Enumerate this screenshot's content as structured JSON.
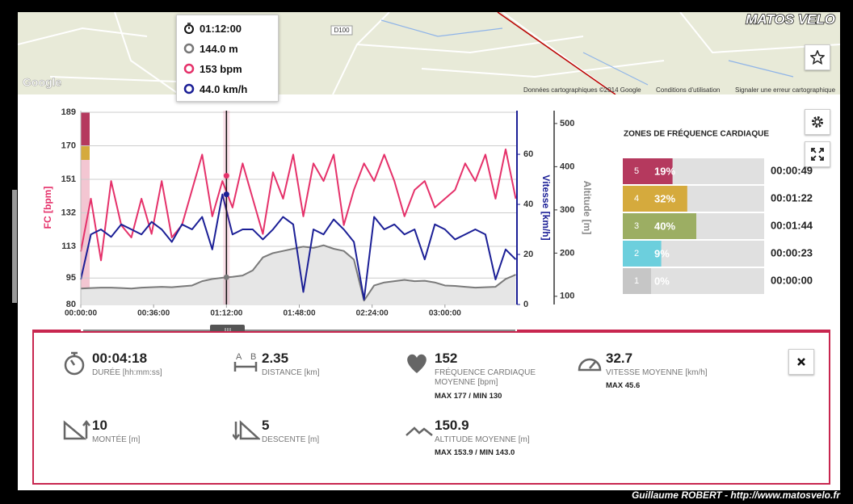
{
  "map": {
    "road": "D100",
    "google": "Google",
    "credits": "Données cartographiques ©2014 Google",
    "terms": "Conditions d'utilisation",
    "report": "Signaler une erreur cartographique"
  },
  "logo": "MATOS VELO",
  "chart_data": {
    "type": "line",
    "x": [
      0,
      5,
      10,
      15,
      20,
      25,
      30,
      35,
      40,
      45,
      50,
      55,
      60,
      65,
      70,
      75,
      80,
      85,
      90,
      95,
      100,
      105,
      110,
      115,
      120,
      125,
      130,
      135,
      140,
      145,
      150,
      155,
      160,
      165,
      170,
      175,
      180,
      185,
      190,
      195,
      200,
      205,
      210,
      215
    ],
    "xlim": [
      0,
      215.6
    ],
    "xticks": [
      {
        "value": 0,
        "label": "00:00:00"
      },
      {
        "value": 36,
        "label": "00:36:00"
      },
      {
        "value": 72,
        "label": "01:12:00"
      },
      {
        "value": 108,
        "label": "01:48:00"
      },
      {
        "value": 144,
        "label": "02:24:00"
      },
      {
        "value": 180,
        "label": "03:00:00"
      }
    ],
    "ylim": [
      80,
      189
    ],
    "yticks": [
      80,
      95,
      113,
      132,
      151,
      170,
      189
    ],
    "ylabel": "FC [bpm]",
    "y2lim": [
      0,
      76.8
    ],
    "y2ticks": [
      0,
      20,
      40,
      60
    ],
    "y2label": "Vitesse [km/h]",
    "y3lim": [
      81,
      526
    ],
    "y3ticks": [
      100,
      200,
      300,
      400,
      500
    ],
    "y3label": "Altitude [m]",
    "grid": true,
    "series": [
      {
        "color": "#e5316a",
        "values": [
          110,
          140,
          105,
          150,
          125,
          118,
          140,
          120,
          150,
          118,
          125,
          145,
          165,
          130,
          150,
          135,
          160,
          140,
          120,
          155,
          140,
          165,
          130,
          160,
          150,
          165,
          125,
          145,
          160,
          150,
          165,
          150,
          130,
          145,
          150,
          135,
          140,
          145,
          160,
          150,
          165,
          140,
          168,
          140
        ]
      },
      {
        "color": "#1b1f96",
        "axis": "y2",
        "values": [
          10,
          28,
          30,
          27,
          32,
          30,
          28,
          33,
          30,
          25,
          32,
          30,
          35,
          22,
          44,
          28,
          30,
          30,
          26,
          30,
          35,
          32,
          5,
          30,
          28,
          34,
          30,
          25,
          2,
          35,
          30,
          32,
          28,
          30,
          18,
          32,
          30,
          26,
          28,
          30,
          28,
          10,
          22,
          18
        ]
      },
      {
        "color": "#7a7a7a",
        "axis": "y3",
        "values": [
          118,
          119,
          120,
          120,
          119,
          118,
          120,
          121,
          122,
          121,
          123,
          125,
          135,
          140,
          143,
          145,
          148,
          160,
          190,
          200,
          205,
          210,
          215,
          212,
          218,
          210,
          205,
          185,
          90,
          125,
          132,
          135,
          138,
          135,
          136,
          132,
          125,
          124,
          122,
          120,
          121,
          122,
          140,
          150
        ]
      }
    ],
    "cursor": {
      "x": 72,
      "label": "01:12:00",
      "altitude": 144,
      "altitude_label": "144.0 m",
      "hr": 153,
      "hr_label": "153 bpm",
      "speed": 44,
      "speed_label": "44.0 km/h"
    }
  },
  "zones": {
    "title": "ZONES DE FRÉQUENCE CARDIAQUE",
    "rows": [
      {
        "zone": "5",
        "value": 19,
        "value_label": "19%",
        "time": "00:00:49",
        "color": "#b5395e"
      },
      {
        "zone": "4",
        "value": 32,
        "value_label": "32%",
        "time": "00:01:22",
        "color": "#d5aa3d"
      },
      {
        "zone": "3",
        "value": 40,
        "value_label": "40%",
        "time": "00:01:44",
        "color": "#9cae63"
      },
      {
        "zone": "2",
        "value": 9,
        "value_label": "9%",
        "time": "00:00:23",
        "color": "#6ccfdd"
      },
      {
        "zone": "1",
        "value": 0,
        "value_label": "0%",
        "time": "00:00:00",
        "color": "#c6c6c6"
      }
    ]
  },
  "stats": [
    {
      "value": "00:04:18",
      "label": "DURÉE [hh:mm:ss]"
    },
    {
      "value": "2.35",
      "label": "DISTANCE [km]"
    },
    {
      "value": "152",
      "label": "FRÉQUENCE CARDIAQUE MOYENNE [bpm]",
      "extra": "MAX 177  /  MIN 130"
    },
    {
      "value": "32.7",
      "label": "VITESSE MOYENNE [km/h]",
      "extra": "MAX 45.6"
    },
    {
      "value": "10",
      "label": "MONTÉE [m]"
    },
    {
      "value": "5",
      "label": "DESCENTE [m]"
    },
    {
      "value": "150.9",
      "label": "ALTITUDE MOYENNE [m]",
      "extra": "MAX 153.9  /  MIN 143.0"
    }
  ],
  "footer": "Guillaume ROBERT - http://www.matosvelo.fr"
}
